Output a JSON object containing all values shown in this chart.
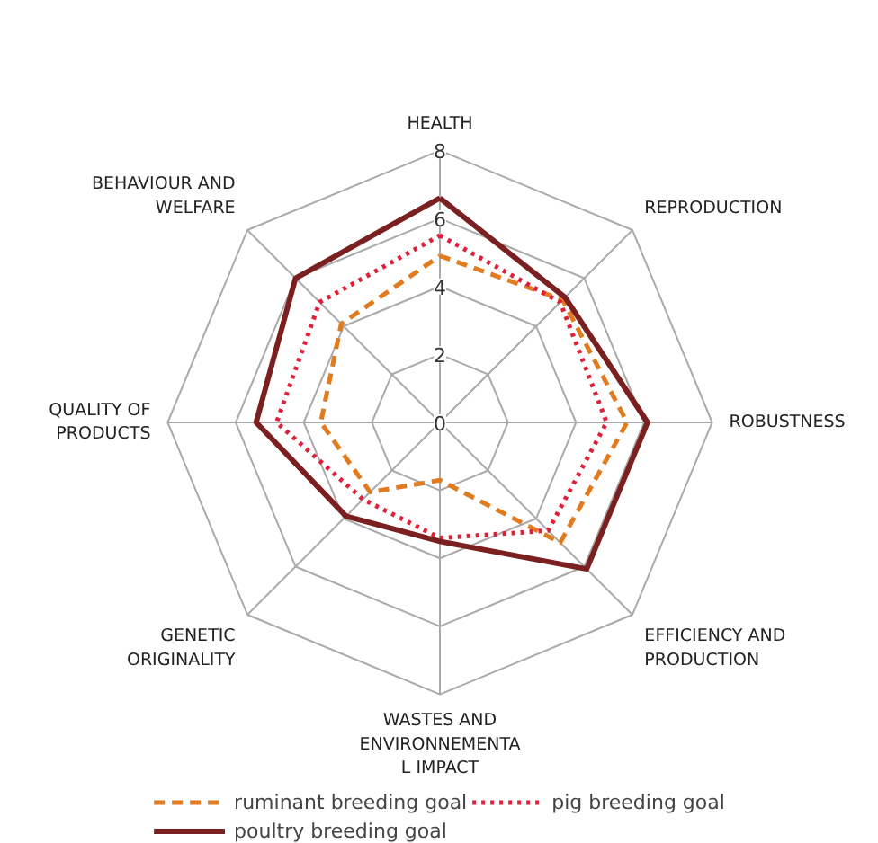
{
  "chart_data": {
    "type": "radar",
    "categories": [
      "HEALTH",
      "REPRODUCTION",
      "ROBUSTNESS",
      "EFFICIENCY AND\nPRODUCTION",
      "WASTES AND\nENVIRONNEMENTA\nL IMPACT",
      "GENETIC\nORIGINALITY",
      "QUALITY OF\nPRODUCTS",
      "BEHAVIOUR AND\nWELFARE"
    ],
    "ylim": [
      0,
      8
    ],
    "yticks": [
      0,
      2,
      4,
      6,
      8
    ],
    "grid": true,
    "legend": "bottom",
    "marker": "none",
    "series": [
      {
        "name": "ruminant breeding goal",
        "color": "#e07b20",
        "line_style": "dashed",
        "values": [
          4.9,
          5.1,
          5.5,
          5.0,
          1.7,
          2.9,
          3.5,
          4.1
        ]
      },
      {
        "name": "pig breeding goal",
        "color": "#e0203a",
        "line_style": "dotted",
        "values": [
          5.5,
          5.0,
          4.9,
          4.5,
          3.4,
          3.2,
          4.8,
          5.0
        ]
      },
      {
        "name": "poultry breeding goal",
        "color": "#7b2020",
        "line_style": "solid",
        "values": [
          6.6,
          5.2,
          6.1,
          6.1,
          3.5,
          3.9,
          5.4,
          6.0
        ]
      }
    ]
  }
}
